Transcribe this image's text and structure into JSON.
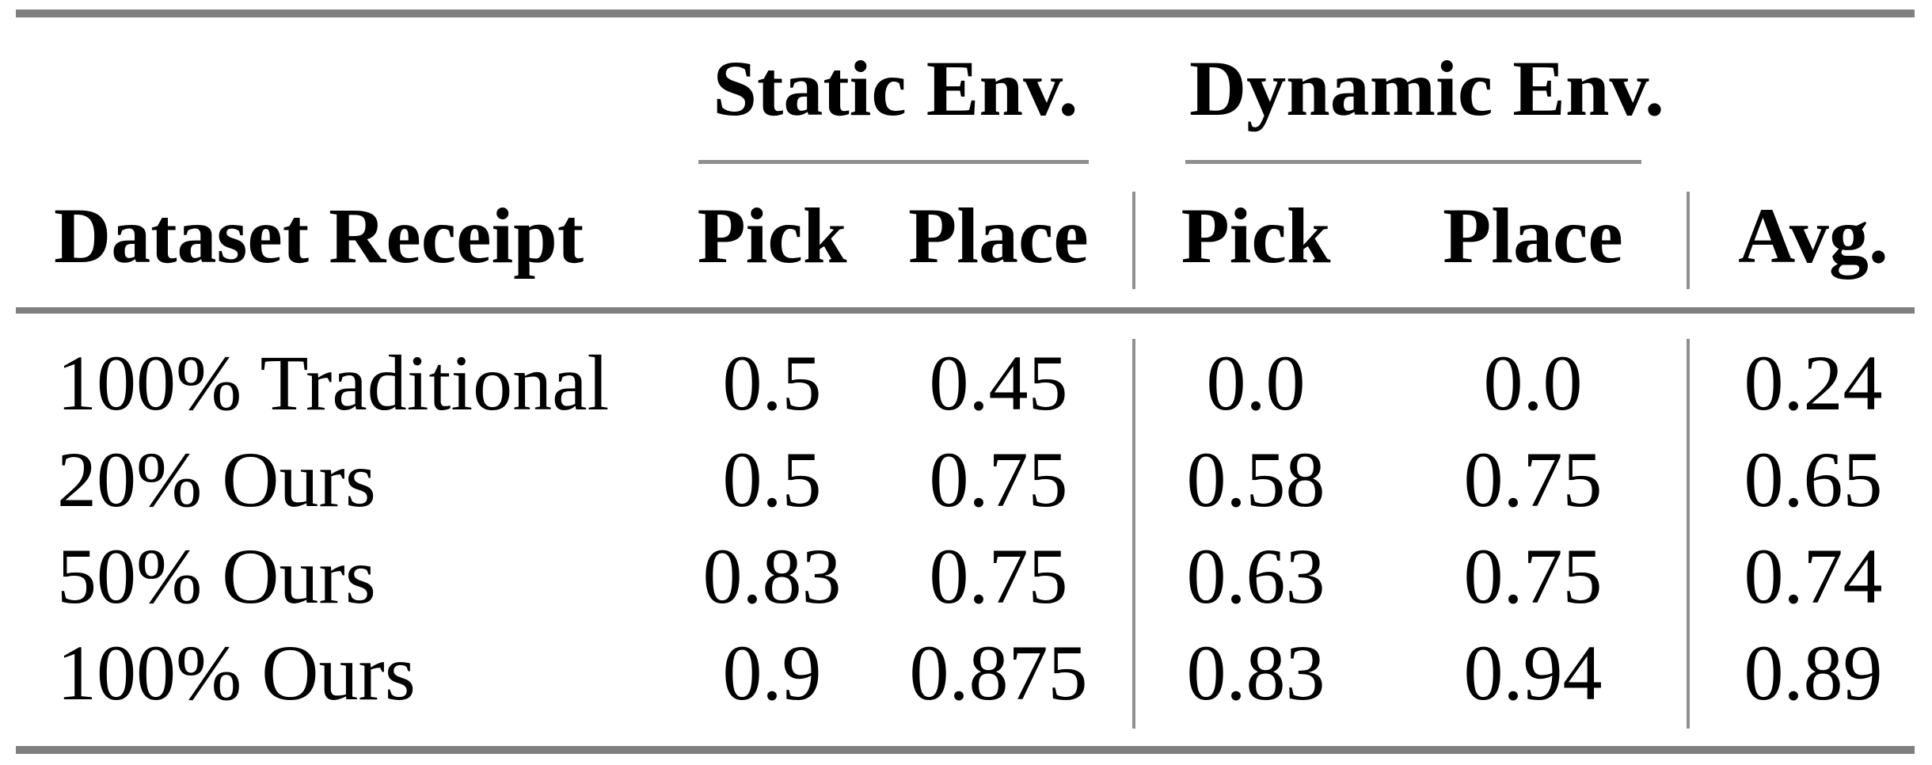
{
  "colors": {
    "background": "#ffffff",
    "text": "#000000",
    "rule_thick": "#7f7f7f",
    "rule_thin": "#8f8f8f"
  },
  "table": {
    "groups": {
      "static": "Static Env.",
      "dynamic": "Dynamic Env."
    },
    "headers": {
      "label": "Dataset Receipt",
      "static_pick": "Pick",
      "static_place": "Place",
      "dynamic_pick": "Pick",
      "dynamic_place": "Place",
      "avg": "Avg."
    },
    "rows": [
      {
        "label": "100% Traditional",
        "static_pick": "0.5",
        "static_place": "0.45",
        "dynamic_pick": "0.0",
        "dynamic_place": "0.0",
        "avg": "0.24"
      },
      {
        "label": "20% Ours",
        "static_pick": "0.5",
        "static_place": "0.75",
        "dynamic_pick": "0.58",
        "dynamic_place": "0.75",
        "avg": "0.65"
      },
      {
        "label": "50% Ours",
        "static_pick": "0.83",
        "static_place": "0.75",
        "dynamic_pick": "0.63",
        "dynamic_place": "0.75",
        "avg": "0.74"
      },
      {
        "label": "100% Ours",
        "static_pick": "0.9",
        "static_place": "0.875",
        "dynamic_pick": "0.83",
        "dynamic_place": "0.94",
        "avg": "0.89"
      }
    ]
  },
  "chart_data": {
    "type": "table",
    "column_groups": [
      "",
      "Static Env.",
      "Static Env.",
      "Dynamic Env.",
      "Dynamic Env.",
      ""
    ],
    "columns": [
      "Dataset Receipt",
      "Pick",
      "Place",
      "Pick",
      "Place",
      "Avg."
    ],
    "rows": [
      [
        "100% Traditional",
        0.5,
        0.45,
        0.0,
        0.0,
        0.24
      ],
      [
        "20% Ours",
        0.5,
        0.75,
        0.58,
        0.75,
        0.65
      ],
      [
        "50% Ours",
        0.83,
        0.75,
        0.63,
        0.75,
        0.74
      ],
      [
        "100% Ours",
        0.9,
        0.875,
        0.83,
        0.94,
        0.89
      ]
    ]
  }
}
